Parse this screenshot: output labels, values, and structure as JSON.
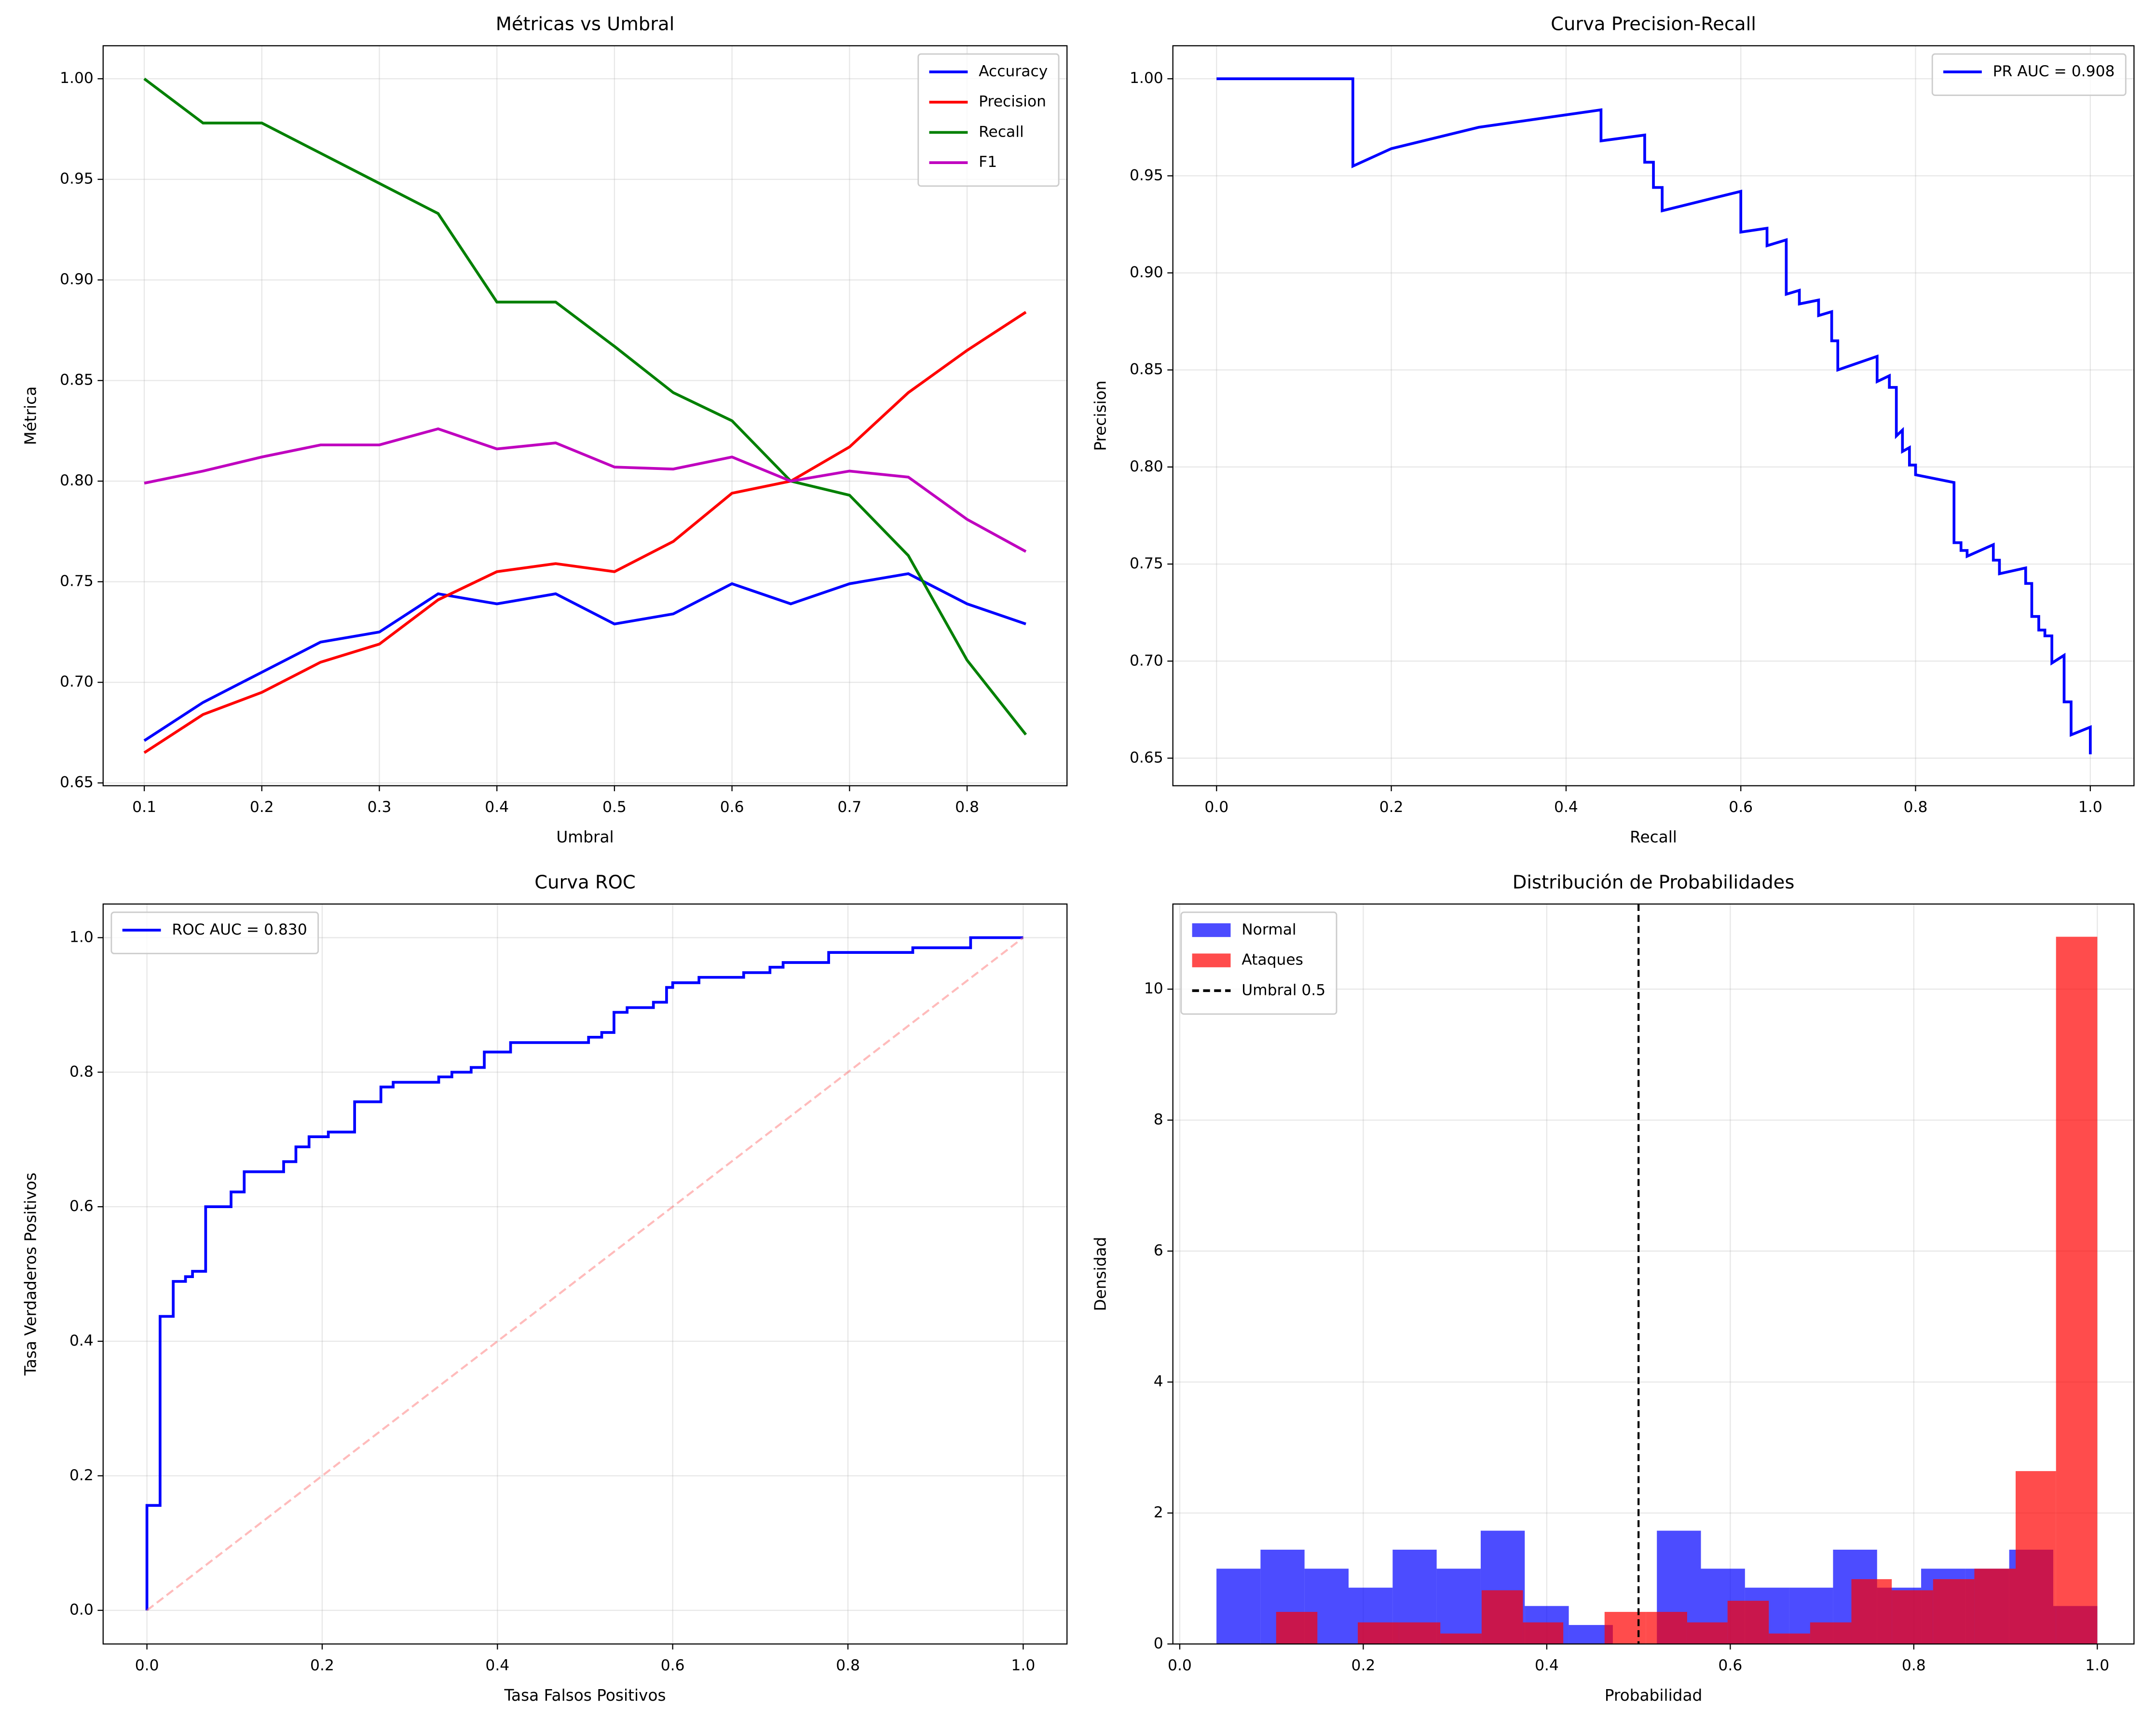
{
  "chart_data": [
    {
      "type": "line",
      "title": "Métricas vs Umbral",
      "xlabel": "Umbral",
      "ylabel": "Métrica",
      "x": [
        0.1,
        0.15,
        0.2,
        0.25,
        0.3,
        0.35,
        0.4,
        0.45,
        0.5,
        0.55,
        0.6,
        0.65,
        0.7,
        0.75,
        0.8,
        0.85
      ],
      "series": [
        {
          "name": "Accuracy",
          "color": "#0000ff",
          "values": [
            0.671,
            0.69,
            0.705,
            0.72,
            0.725,
            0.744,
            0.739,
            0.744,
            0.729,
            0.734,
            0.749,
            0.739,
            0.749,
            0.754,
            0.739,
            0.729
          ]
        },
        {
          "name": "Precision",
          "color": "#ff0000",
          "values": [
            0.665,
            0.684,
            0.695,
            0.71,
            0.719,
            0.741,
            0.755,
            0.759,
            0.755,
            0.77,
            0.794,
            0.8,
            0.817,
            0.844,
            0.865,
            0.884
          ]
        },
        {
          "name": "Recall",
          "color": "#008000",
          "values": [
            1.0,
            0.978,
            0.978,
            0.963,
            0.948,
            0.933,
            0.889,
            0.889,
            0.867,
            0.844,
            0.83,
            0.8,
            0.793,
            0.763,
            0.711,
            0.674
          ]
        },
        {
          "name": "F1",
          "color": "#bf00bf",
          "values": [
            0.799,
            0.805,
            0.812,
            0.818,
            0.818,
            0.826,
            0.816,
            0.819,
            0.807,
            0.806,
            0.812,
            0.8,
            0.805,
            0.802,
            0.781,
            0.765
          ]
        }
      ],
      "xlim": [
        0.065,
        0.885
      ],
      "ylim": [
        0.6486,
        1.0164
      ],
      "xticks": [
        0.1,
        0.2,
        0.3,
        0.4,
        0.5,
        0.6,
        0.7,
        0.8
      ],
      "yticks": [
        0.65,
        {
          "value": 0.7,
          "label": "0.70"
        },
        0.75,
        {
          "value": 0.8,
          "label": "0.80"
        },
        0.85,
        {
          "value": 0.9,
          "label": "0.90"
        },
        0.95,
        {
          "value": 1.0,
          "label": "1.00"
        }
      ],
      "grid": true,
      "legend": "upper right"
    },
    {
      "type": "line",
      "title": "Curva Precision-Recall",
      "xlabel": "Recall",
      "ylabel": "Precision",
      "series": [
        {
          "name": "PR AUC = 0.908",
          "color": "#0000ff",
          "x": [
            0,
            0.156,
            0.156,
            0.2,
            0.3,
            0.44,
            0.44,
            0.49,
            0.49,
            0.5,
            0.5,
            0.51,
            0.51,
            0.6,
            0.6,
            0.63,
            0.63,
            0.652,
            0.652,
            0.667,
            0.667,
            0.689,
            0.689,
            0.704,
            0.704,
            0.711,
            0.711,
            0.756,
            0.756,
            0.77,
            0.77,
            0.778,
            0.778,
            0.785,
            0.785,
            0.793,
            0.793,
            0.8,
            0.8,
            0.844,
            0.844,
            0.852,
            0.852,
            0.859,
            0.859,
            0.889,
            0.889,
            0.896,
            0.896,
            0.926,
            0.926,
            0.933,
            0.933,
            0.941,
            0.941,
            0.948,
            0.948,
            0.956,
            0.956,
            0.97,
            0.97,
            0.978,
            0.978,
            1.0,
            1.0
          ],
          "values": [
            1.0,
            1.0,
            0.955,
            0.964,
            0.975,
            0.984,
            0.968,
            0.971,
            0.957,
            0.957,
            0.944,
            0.944,
            0.932,
            0.942,
            0.921,
            0.923,
            0.914,
            0.917,
            0.889,
            0.891,
            0.884,
            0.886,
            0.878,
            0.88,
            0.865,
            0.865,
            0.85,
            0.857,
            0.844,
            0.847,
            0.841,
            0.841,
            0.816,
            0.819,
            0.808,
            0.81,
            0.801,
            0.801,
            0.796,
            0.792,
            0.761,
            0.761,
            0.757,
            0.757,
            0.754,
            0.76,
            0.752,
            0.752,
            0.745,
            0.748,
            0.74,
            0.74,
            0.723,
            0.723,
            0.716,
            0.716,
            0.713,
            0.713,
            0.699,
            0.703,
            0.679,
            0.679,
            0.662,
            0.666,
            0.652
          ]
        }
      ],
      "xlim": [
        -0.05,
        1.05
      ],
      "ylim": [
        0.6358,
        1.017
      ],
      "xticks": [
        {
          "value": 0,
          "label": "0.0"
        },
        0.2,
        0.4,
        0.6,
        0.8,
        {
          "value": 1,
          "label": "1.0"
        }
      ],
      "yticks": [
        0.65,
        {
          "value": 0.7,
          "label": "0.70"
        },
        0.75,
        {
          "value": 0.8,
          "label": "0.80"
        },
        0.85,
        {
          "value": 0.9,
          "label": "0.90"
        },
        0.95,
        {
          "value": 1.0,
          "label": "1.00"
        }
      ],
      "grid": true,
      "legend": "upper right"
    },
    {
      "type": "line",
      "title": "Curva ROC",
      "xlabel": "Tasa Falsos Positivos",
      "ylabel": "Tasa Verdaderos Positivos",
      "series": [
        {
          "name": "ROC AUC = 0.830",
          "color": "#0000ff",
          "x": [
            0,
            0,
            0.015,
            0.015,
            0.03,
            0.03,
            0.044,
            0.044,
            0.052,
            0.052,
            0.067,
            0.067,
            0.096,
            0.096,
            0.111,
            0.111,
            0.156,
            0.156,
            0.17,
            0.17,
            0.185,
            0.185,
            0.207,
            0.207,
            0.237,
            0.237,
            0.267,
            0.267,
            0.281,
            0.281,
            0.333,
            0.333,
            0.348,
            0.348,
            0.37,
            0.37,
            0.385,
            0.385,
            0.415,
            0.415,
            0.504,
            0.504,
            0.519,
            0.519,
            0.533,
            0.533,
            0.548,
            0.548,
            0.578,
            0.578,
            0.593,
            0.593,
            0.6,
            0.6,
            0.63,
            0.63,
            0.681,
            0.681,
            0.711,
            0.711,
            0.726,
            0.726,
            0.778,
            0.778,
            0.874,
            0.874,
            0.94,
            0.94,
            1
          ],
          "values": [
            0,
            0.156,
            0.156,
            0.437,
            0.437,
            0.489,
            0.489,
            0.496,
            0.496,
            0.504,
            0.504,
            0.6,
            0.6,
            0.622,
            0.622,
            0.652,
            0.652,
            0.667,
            0.667,
            0.689,
            0.689,
            0.704,
            0.704,
            0.711,
            0.711,
            0.756,
            0.756,
            0.778,
            0.778,
            0.785,
            0.785,
            0.793,
            0.793,
            0.8,
            0.8,
            0.807,
            0.807,
            0.83,
            0.83,
            0.844,
            0.844,
            0.852,
            0.852,
            0.859,
            0.859,
            0.889,
            0.889,
            0.896,
            0.896,
            0.904,
            0.904,
            0.926,
            0.926,
            0.933,
            0.933,
            0.941,
            0.941,
            0.948,
            0.948,
            0.956,
            0.956,
            0.963,
            0.963,
            0.978,
            0.978,
            0.985,
            0.985,
            1.0,
            1.0
          ]
        },
        {
          "color": "#ff7777",
          "dash": true,
          "x": [
            0,
            1
          ],
          "values": [
            0,
            1
          ]
        }
      ],
      "xlim": [
        -0.05,
        1.05
      ],
      "ylim": [
        -0.05,
        1.05
      ],
      "xticks": [
        {
          "value": 0,
          "label": "0.0"
        },
        0.2,
        0.4,
        0.6,
        0.8,
        {
          "value": 1,
          "label": "1.0"
        }
      ],
      "yticks": [
        {
          "value": 0,
          "label": "0.0"
        },
        0.2,
        0.4,
        0.6,
        0.8,
        {
          "value": 1,
          "label": "1.0"
        }
      ],
      "grid": true,
      "legend": "upper left"
    },
    {
      "type": "histogram",
      "title": "Distribución de Probabilidades",
      "xlabel": "Probabilidad",
      "ylabel": "Densidad",
      "series": [
        {
          "name": "Normal",
          "color": "#0000ff",
          "bins": [
            0.04,
            0.088,
            0.136,
            0.184,
            0.232,
            0.28,
            0.328,
            0.376,
            0.424,
            0.472,
            0.52,
            0.568,
            0.616,
            0.664,
            0.712,
            0.76,
            0.808,
            0.856,
            0.904,
            0.952,
            1.0
          ],
          "values": [
            1.15,
            1.44,
            1.15,
            0.86,
            1.44,
            1.15,
            1.73,
            0.58,
            0.29,
            0,
            1.73,
            1.15,
            0.86,
            0.86,
            1.44,
            0.86,
            1.15,
            1.15,
            1.44,
            0.58
          ]
        },
        {
          "name": "Ataques",
          "color": "#ff0000",
          "bins": [
            0.105,
            0.15,
            0.194,
            0.239,
            0.284,
            0.329,
            0.374,
            0.418,
            0.463,
            0.508,
            0.553,
            0.597,
            0.642,
            0.687,
            0.732,
            0.776,
            0.821,
            0.866,
            0.911,
            0.955,
            1.0
          ],
          "values": [
            0.49,
            0,
            0.33,
            0.33,
            0.16,
            0.82,
            0.33,
            0,
            0.49,
            0.49,
            0.33,
            0.66,
            0.16,
            0.33,
            0.99,
            0.82,
            0.99,
            1.15,
            2.64,
            10.8
          ]
        }
      ],
      "vlines": [
        {
          "name": "Umbral 0.5",
          "x": 0.5,
          "color": "#000000",
          "dash": true
        }
      ],
      "xlim": [
        -0.0075,
        1.04
      ],
      "ylim": [
        0,
        11.3
      ],
      "xticks": [
        {
          "value": 0,
          "label": "0.0"
        },
        0.2,
        0.4,
        0.6,
        0.8,
        {
          "value": 1,
          "label": "1.0"
        }
      ],
      "yticks": [
        0,
        2,
        4,
        6,
        8,
        10
      ],
      "grid": true,
      "legend": "upper left"
    }
  ]
}
